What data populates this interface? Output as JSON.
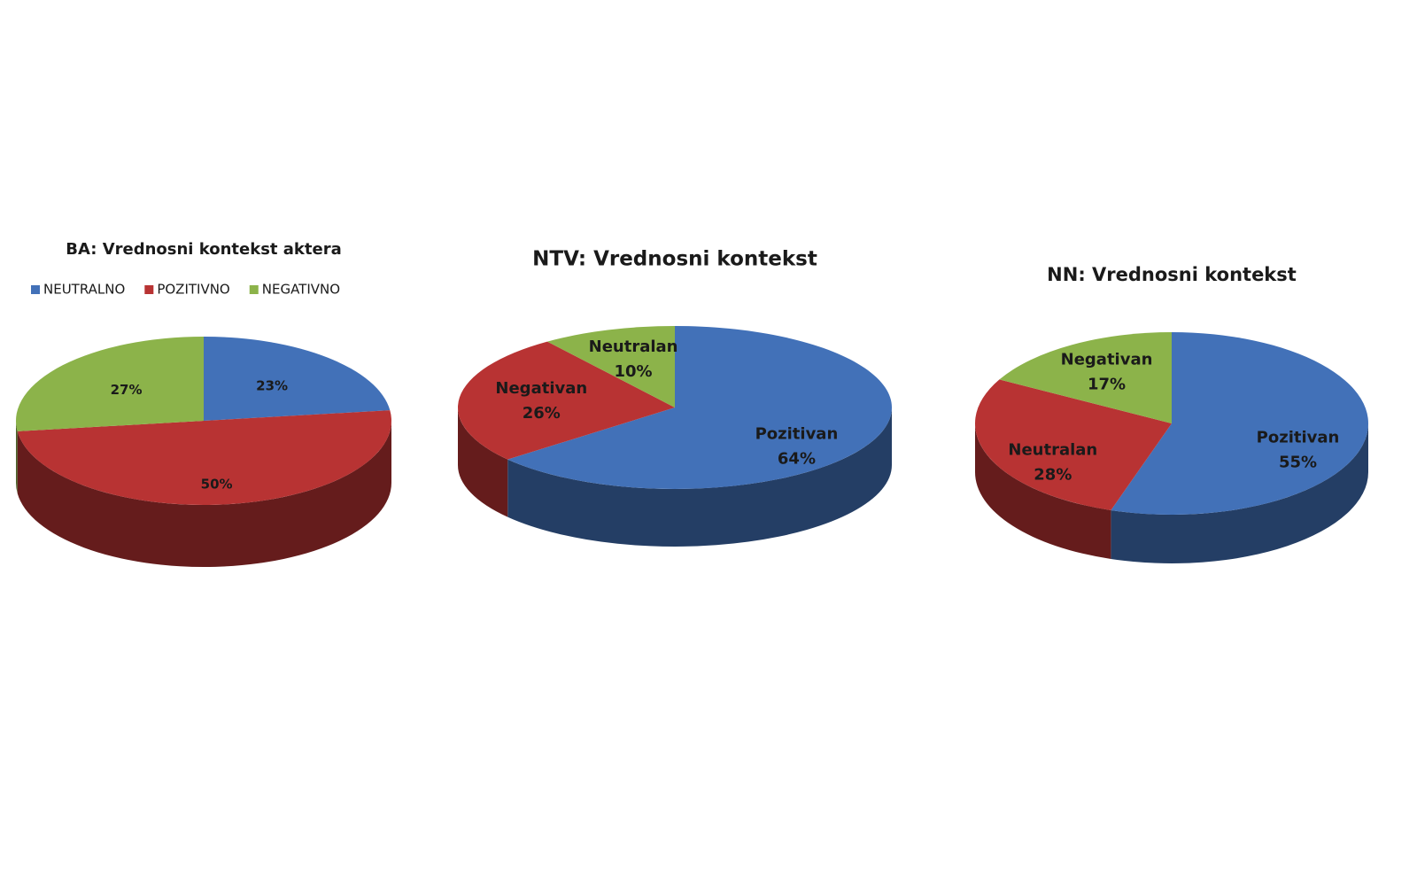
{
  "chart_data": [
    {
      "type": "pie",
      "title": "BA: Vrednosni kontekst aktera",
      "categories": [
        "NEUTRALNO",
        "POZITIVNO",
        "NEGATIVNO"
      ],
      "values": [
        23,
        50,
        27
      ],
      "value_labels": [
        "23%",
        "50%",
        "27%"
      ],
      "colors": [
        "#4271b8",
        "#b83333",
        "#8cb34a"
      ],
      "legend": "top"
    },
    {
      "type": "pie",
      "title": "NTV: Vrednosni kontekst",
      "categories": [
        "Pozitivan",
        "Negativan",
        "Neutralan"
      ],
      "values": [
        64,
        26,
        10
      ],
      "value_labels": [
        "64%",
        "26%",
        "10%"
      ],
      "colors": [
        "#4271b8",
        "#b83333",
        "#8cb34a"
      ]
    },
    {
      "type": "pie",
      "title": "NN: Vrednosni kontekst",
      "categories": [
        "Pozitivan",
        "Neutralan",
        "Negativan"
      ],
      "values": [
        55,
        28,
        17
      ],
      "value_labels": [
        "55%",
        "28%",
        "17%"
      ],
      "colors": [
        "#4271b8",
        "#b83333",
        "#8cb34a"
      ]
    }
  ]
}
